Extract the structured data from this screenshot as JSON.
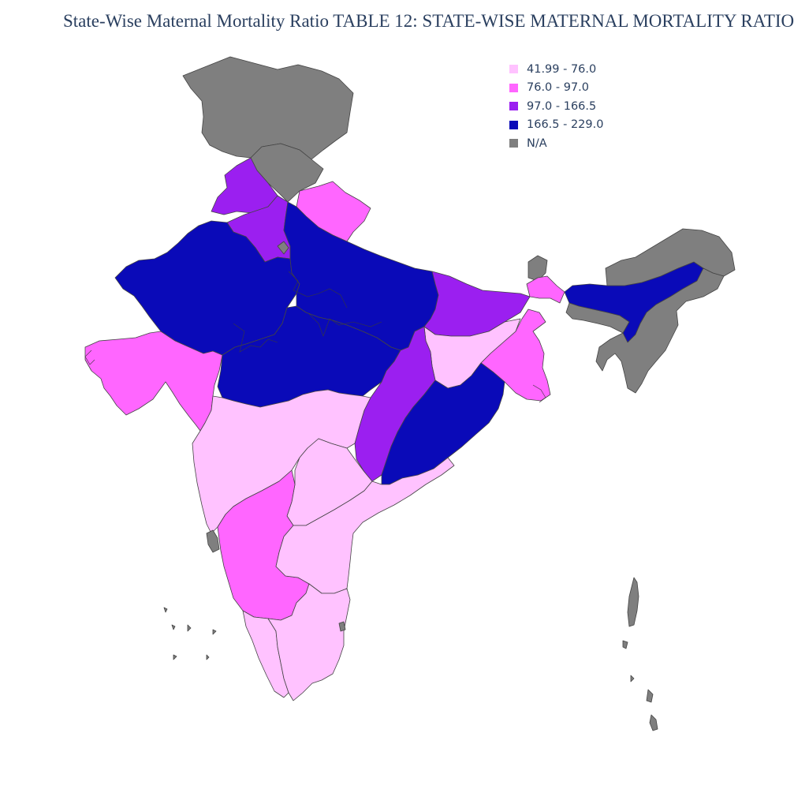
{
  "title": "State-Wise Maternal Mortality Ratio TABLE 12: STATE-WISE MATERNAL MORTALITY RATIO",
  "colors": {
    "bin1": "#ffc2ff",
    "bin2": "#ff66ff",
    "bin3": "#9b1ff0",
    "bin4": "#0a0ab8",
    "na": "#7f7f7f",
    "border": "#444444"
  },
  "legend": [
    {
      "label": "41.99 - 76.0",
      "color": "#ffc2ff"
    },
    {
      "label": "76.0 - 97.0",
      "color": "#ff66ff"
    },
    {
      "label": "97.0 - 166.5",
      "color": "#9b1ff0"
    },
    {
      "label": "166.5 - 229.0",
      "color": "#0a0ab8"
    },
    {
      "label": "N/A",
      "color": "#7f7f7f"
    }
  ]
}
